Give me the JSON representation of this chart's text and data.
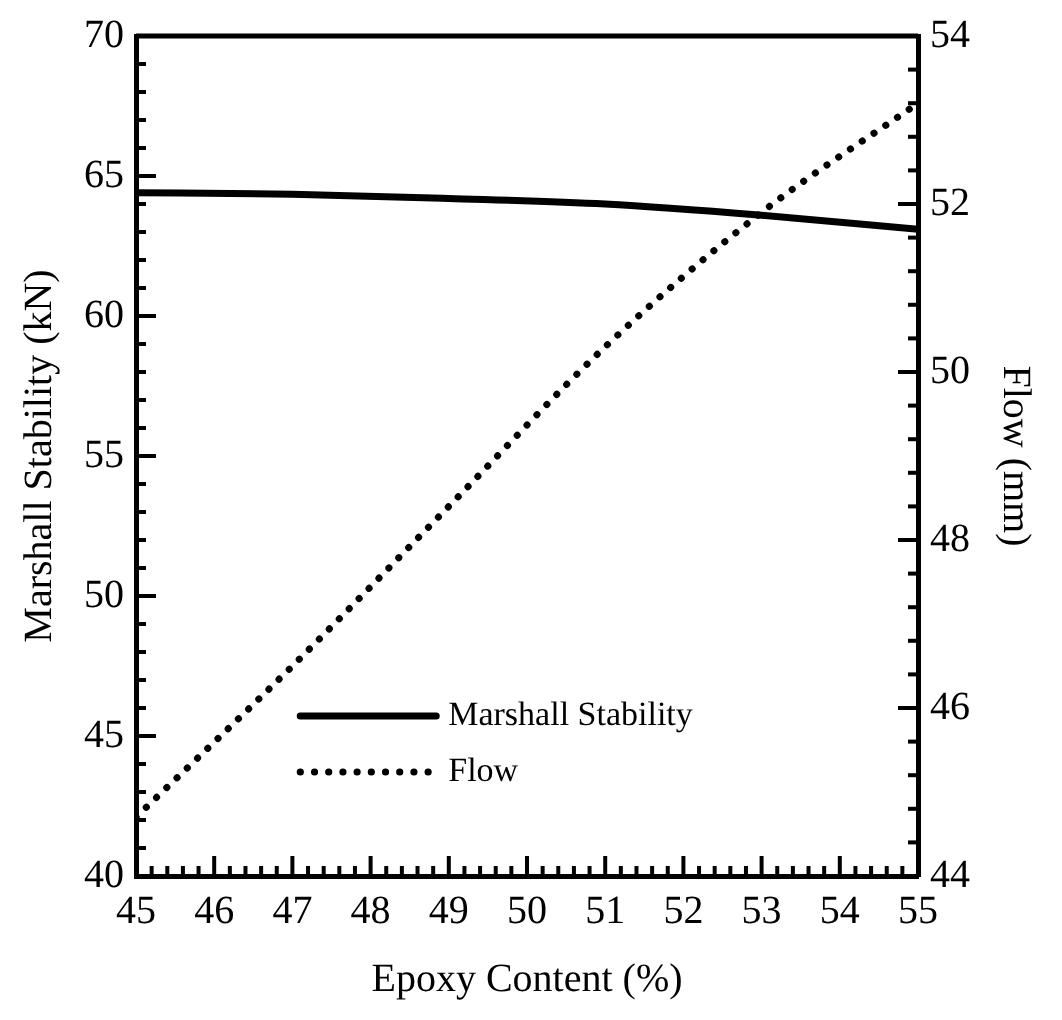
{
  "chart_data": {
    "type": "line",
    "xlabel": "Epoxy Content (%)",
    "ylabel": "Marshall Stability (kN)",
    "y2label": "Flow (mm)",
    "x": [
      45,
      47,
      49,
      51,
      53,
      55
    ],
    "series": [
      {
        "name": "Marshall Stability",
        "color": "#000000",
        "line_style": "solid",
        "values": [
          64.4,
          64.35,
          64.2,
          64.0,
          63.6,
          63.1
        ]
      },
      {
        "name": "Flow",
        "color": "#000000",
        "line_style": "dotted",
        "axis": "y2",
        "values": [
          44.7,
          46.5,
          48.4,
          50.3,
          51.9,
          53.2
        ]
      }
    ],
    "xlim": [
      45,
      55
    ],
    "xticks": [
      45,
      {
        "value": 45.2,
        "label": null
      },
      {
        "value": 45.4,
        "label": null
      },
      {
        "value": 45.6,
        "label": null
      },
      {
        "value": 45.8,
        "label": null
      },
      46,
      {
        "value": 46.2,
        "label": null
      },
      {
        "value": 46.4,
        "label": null
      },
      {
        "value": 46.6,
        "label": null
      },
      {
        "value": 46.8,
        "label": null
      },
      47,
      {
        "value": 47.2,
        "label": null
      },
      {
        "value": 47.4,
        "label": null
      },
      {
        "value": 47.6,
        "label": null
      },
      {
        "value": 47.8,
        "label": null
      },
      48,
      {
        "value": 48.2,
        "label": null
      },
      {
        "value": 48.4,
        "label": null
      },
      {
        "value": 48.6,
        "label": null
      },
      {
        "value": 48.8,
        "label": null
      },
      49,
      {
        "value": 49.2,
        "label": null
      },
      {
        "value": 49.4,
        "label": null
      },
      {
        "value": 49.6,
        "label": null
      },
      {
        "value": 49.8,
        "label": null
      },
      50,
      {
        "value": 50.2,
        "label": null
      },
      {
        "value": 50.4,
        "label": null
      },
      {
        "value": 50.6,
        "label": null
      },
      {
        "value": 50.8,
        "label": null
      },
      51,
      {
        "value": 51.2,
        "label": null
      },
      {
        "value": 51.4,
        "label": null
      },
      {
        "value": 51.6,
        "label": null
      },
      {
        "value": 51.8,
        "label": null
      },
      52,
      {
        "value": 52.2,
        "label": null
      },
      {
        "value": 52.4,
        "label": null
      },
      {
        "value": 52.6,
        "label": null
      },
      {
        "value": 52.8,
        "label": null
      },
      53,
      {
        "value": 53.2,
        "label": null
      },
      {
        "value": 53.4,
        "label": null
      },
      {
        "value": 53.6,
        "label": null
      },
      {
        "value": 53.8,
        "label": null
      },
      54,
      {
        "value": 54.2,
        "label": null
      },
      {
        "value": 54.4,
        "label": null
      },
      {
        "value": 54.6,
        "label": null
      },
      {
        "value": 54.8,
        "label": null
      },
      55
    ],
    "ylim": [
      40,
      70
    ],
    "yticks": [
      40,
      {
        "value": 41,
        "label": null
      },
      {
        "value": 42,
        "label": null
      },
      {
        "value": 43,
        "label": null
      },
      {
        "value": 44,
        "label": null
      },
      45,
      {
        "value": 46,
        "label": null
      },
      {
        "value": 47,
        "label": null
      },
      {
        "value": 48,
        "label": null
      },
      {
        "value": 49,
        "label": null
      },
      50,
      {
        "value": 51,
        "label": null
      },
      {
        "value": 52,
        "label": null
      },
      {
        "value": 53,
        "label": null
      },
      {
        "value": 54,
        "label": null
      },
      55,
      {
        "value": 56,
        "label": null
      },
      {
        "value": 57,
        "label": null
      },
      {
        "value": 58,
        "label": null
      },
      {
        "value": 59,
        "label": null
      },
      60,
      {
        "value": 61,
        "label": null
      },
      {
        "value": 62,
        "label": null
      },
      {
        "value": 63,
        "label": null
      },
      {
        "value": 64,
        "label": null
      },
      65,
      {
        "value": 66,
        "label": null
      },
      {
        "value": 67,
        "label": null
      },
      {
        "value": 68,
        "label": null
      },
      {
        "value": 69,
        "label": null
      },
      70
    ],
    "y2lim": [
      44,
      54
    ],
    "y2ticks": [
      44,
      {
        "value": 44.4,
        "label": null
      },
      {
        "value": 44.8,
        "label": null
      },
      {
        "value": 45.2,
        "label": null
      },
      {
        "value": 45.6,
        "label": null
      },
      46,
      {
        "value": 46.4,
        "label": null
      },
      {
        "value": 46.8,
        "label": null
      },
      {
        "value": 47.2,
        "label": null
      },
      {
        "value": 47.6,
        "label": null
      },
      48,
      {
        "value": 48.4,
        "label": null
      },
      {
        "value": 48.8,
        "label": null
      },
      {
        "value": 49.2,
        "label": null
      },
      {
        "value": 49.6,
        "label": null
      },
      50,
      {
        "value": 50.4,
        "label": null
      },
      {
        "value": 50.8,
        "label": null
      },
      {
        "value": 51.2,
        "label": null
      },
      {
        "value": 51.6,
        "label": null
      },
      52,
      {
        "value": 52.4,
        "label": null
      },
      {
        "value": 52.8,
        "label": null
      },
      {
        "value": 53.2,
        "label": null
      },
      {
        "value": 53.6,
        "label": null
      },
      54
    ],
    "grid": false,
    "legend": "bottom",
    "marker": "none"
  }
}
